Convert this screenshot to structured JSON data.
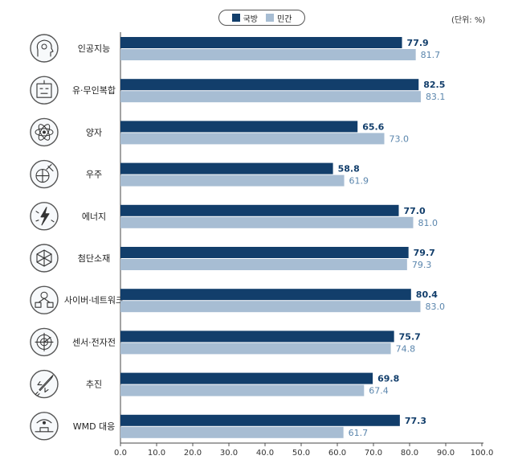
{
  "chart_data": {
    "type": "bar",
    "orientation": "horizontal",
    "unit_label": "(단위: %)",
    "categories": [
      "인공지능",
      "유·무인복합",
      "양자",
      "우주",
      "에너지",
      "첨단소재",
      "사이버·네트워크",
      "센서·전자전",
      "추진",
      "WMD 대응"
    ],
    "icons": [
      "ai-head-icon",
      "robot-face-icon",
      "atom-icon",
      "satellite-globe-icon",
      "lightning-energy-icon",
      "lattice-material-icon",
      "network-devices-icon",
      "radar-sensor-icon",
      "rocket-propulsion-icon",
      "hazard-shield-icon"
    ],
    "series": [
      {
        "name": "국방",
        "color": "#123e6b",
        "values": [
          77.9,
          82.5,
          65.6,
          58.8,
          77.0,
          79.7,
          80.4,
          75.7,
          69.8,
          77.3
        ],
        "labels": [
          "77.9",
          "82.5",
          "65.6",
          "58.8",
          "77.0",
          "79.7",
          "80.4",
          "75.7",
          "69.8",
          "77.3"
        ]
      },
      {
        "name": "민간",
        "color": "#a7bdd3",
        "values": [
          81.7,
          83.1,
          73.0,
          61.9,
          81.0,
          79.3,
          83.0,
          74.8,
          67.4,
          61.7
        ],
        "labels": [
          "81.7",
          "83.1",
          "73.0",
          "61.9",
          "81.0",
          "79.3",
          "83.0",
          "74.8",
          "67.4",
          "61.7"
        ]
      }
    ],
    "xlim": [
      0,
      100
    ],
    "xticks": [
      "0.0",
      "10.0",
      "20.0",
      "30.0",
      "40.0",
      "50.0",
      "60.0",
      "70.0",
      "80.0",
      "90.0",
      "100.0"
    ],
    "legend_position": "top-center"
  }
}
